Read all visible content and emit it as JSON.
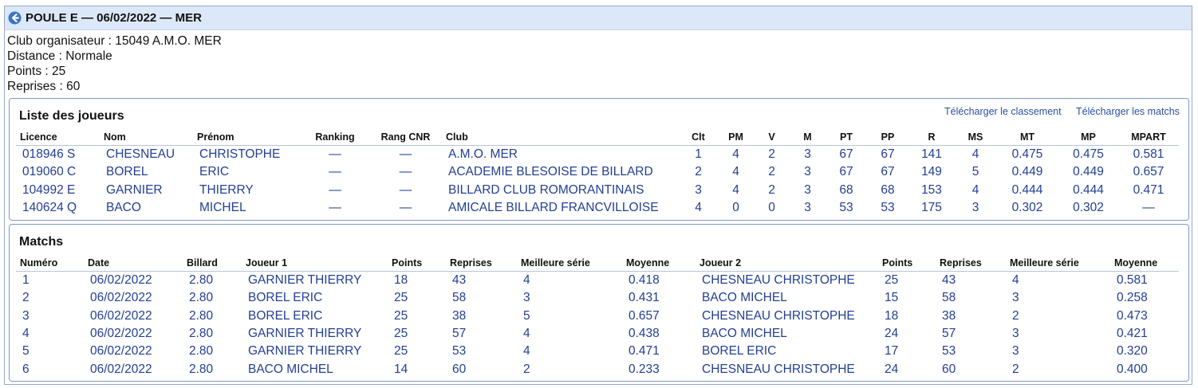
{
  "header": {
    "title": "POULE E — 06/02/2022 — MER"
  },
  "info": {
    "club": "Club organisateur : 15049 A.M.O. MER",
    "distance": "Distance : Normale",
    "points": "Points : 25",
    "reprises": "Reprises : 60"
  },
  "players": {
    "title": "Liste des joueurs",
    "download_ranking": "Télécharger le classement",
    "download_matches": "Télécharger les matchs",
    "columns": [
      "Licence",
      "Nom",
      "Prénom",
      "Ranking",
      "Rang CNR",
      "Club",
      "Clt",
      "PM",
      "V",
      "M",
      "PT",
      "PP",
      "R",
      "MS",
      "MT",
      "MP",
      "MPART"
    ],
    "rows": [
      [
        "018946 S",
        "CHESNEAU",
        "CHRISTOPHE",
        "—",
        "—",
        "A.M.O. MER",
        "1",
        "4",
        "2",
        "3",
        "67",
        "67",
        "141",
        "4",
        "0.475",
        "0.475",
        "0.581"
      ],
      [
        "019060 C",
        "BOREL",
        "ERIC",
        "—",
        "—",
        "ACADEMIE BLESOISE DE BILLARD",
        "2",
        "4",
        "2",
        "3",
        "67",
        "67",
        "149",
        "5",
        "0.449",
        "0.449",
        "0.657"
      ],
      [
        "104992 E",
        "GARNIER",
        "THIERRY",
        "—",
        "—",
        "BILLARD CLUB ROMORANTINAIS",
        "3",
        "4",
        "2",
        "3",
        "68",
        "68",
        "153",
        "4",
        "0.444",
        "0.444",
        "0.471"
      ],
      [
        "140624 Q",
        "BACO",
        "MICHEL",
        "—",
        "—",
        "AMICALE BILLARD FRANCVILLOISE",
        "4",
        "0",
        "0",
        "3",
        "53",
        "53",
        "175",
        "3",
        "0.302",
        "0.302",
        "—"
      ]
    ]
  },
  "matches": {
    "title": "Matchs",
    "columns": [
      "Numéro",
      "Date",
      "Billard",
      "Joueur 1",
      "Points",
      "Reprises",
      "Meilleure série",
      "Moyenne",
      "Joueur 2",
      "Points",
      "Reprises",
      "Meilleure série",
      "Moyenne"
    ],
    "rows": [
      [
        "1",
        "06/02/2022",
        "2.80",
        "GARNIER THIERRY",
        "18",
        "43",
        "4",
        "0.418",
        "CHESNEAU CHRISTOPHE",
        "25",
        "43",
        "4",
        "0.581"
      ],
      [
        "2",
        "06/02/2022",
        "2.80",
        "BOREL ERIC",
        "25",
        "58",
        "3",
        "0.431",
        "BACO MICHEL",
        "15",
        "58",
        "3",
        "0.258"
      ],
      [
        "3",
        "06/02/2022",
        "2.80",
        "BOREL ERIC",
        "25",
        "38",
        "5",
        "0.657",
        "CHESNEAU CHRISTOPHE",
        "18",
        "38",
        "2",
        "0.473"
      ],
      [
        "4",
        "06/02/2022",
        "2.80",
        "GARNIER THIERRY",
        "25",
        "57",
        "4",
        "0.438",
        "BACO MICHEL",
        "24",
        "57",
        "3",
        "0.421"
      ],
      [
        "5",
        "06/02/2022",
        "2.80",
        "GARNIER THIERRY",
        "25",
        "53",
        "4",
        "0.471",
        "BOREL ERIC",
        "17",
        "53",
        "3",
        "0.320"
      ],
      [
        "6",
        "06/02/2022",
        "2.80",
        "BACO MICHEL",
        "14",
        "60",
        "2",
        "0.233",
        "CHESNEAU CHRISTOPHE",
        "24",
        "60",
        "2",
        "0.400"
      ]
    ]
  },
  "colors": {
    "titlebar_bg": "#dce8f9",
    "link": "#223f94",
    "panel_border": "#7f97c8"
  },
  "icons": {
    "back": "arrow-left-circle-icon"
  }
}
